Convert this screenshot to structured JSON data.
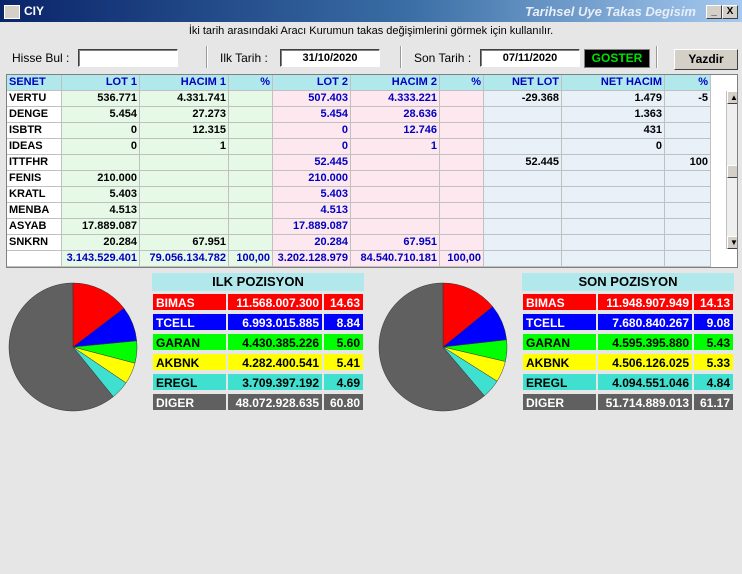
{
  "window": {
    "title": "CIY",
    "title_right": "Tarihsel Uye Takas Degisim"
  },
  "window_controls": {
    "minimize": "_",
    "close": "X"
  },
  "hint": "İki tarih arasındaki  Aracı Kurumun takas değişimlerini görmek için kullanılır.",
  "filters": {
    "hisse_label": "Hisse Bul :",
    "hisse_value": "",
    "ilk_label": "Ilk Tarih :",
    "ilk_value": "31/10/2020",
    "son_label": "Son Tarih :",
    "son_value": "07/11/2020",
    "goster": "GOSTER",
    "yazdir": "Yazdir"
  },
  "table": {
    "headers": [
      "SENET",
      "LOT 1",
      "HACIM 1",
      "%",
      "LOT 2",
      "HACIM 2",
      "%",
      "NET LOT",
      "NET HACIM",
      "%"
    ],
    "rows": [
      [
        "VERTU",
        "536.771",
        "4.331.741",
        "",
        "507.403",
        "4.333.221",
        "",
        "-29.368",
        "1.479",
        "-5"
      ],
      [
        "DENGE",
        "5.454",
        "27.273",
        "",
        "5.454",
        "28.636",
        "",
        "",
        "1.363",
        ""
      ],
      [
        "ISBTR",
        "0",
        "12.315",
        "",
        "0",
        "12.746",
        "",
        "",
        "431",
        ""
      ],
      [
        "IDEAS",
        "0",
        "1",
        "",
        "0",
        "1",
        "",
        "",
        "0",
        ""
      ],
      [
        "ITTFHR",
        "",
        "",
        "",
        "52.445",
        "",
        "",
        "52.445",
        "",
        "100"
      ],
      [
        "FENIS",
        "210.000",
        "",
        "",
        "210.000",
        "",
        "",
        "",
        "",
        ""
      ],
      [
        "KRATL",
        "5.403",
        "",
        "",
        "5.403",
        "",
        "",
        "",
        "",
        ""
      ],
      [
        "MENBA",
        "4.513",
        "",
        "",
        "4.513",
        "",
        "",
        "",
        "",
        ""
      ],
      [
        "ASYAB",
        "17.889.087",
        "",
        "",
        "17.889.087",
        "",
        "",
        "",
        "",
        ""
      ],
      [
        "SNKRN",
        "20.284",
        "67.951",
        "",
        "20.284",
        "67.951",
        "",
        "",
        "",
        ""
      ]
    ],
    "totals": [
      "",
      "3.143.529.401",
      "79.056.134.782",
      "100,00",
      "3.202.128.979",
      "84.540.710.181",
      "100,00",
      "",
      "",
      ""
    ]
  },
  "ilk_pozisyon": {
    "title": "ILK POZISYON",
    "rows": [
      {
        "name": "BIMAS",
        "value": "11.568.007.300",
        "pct": "14.63",
        "color": "#ff0000",
        "fg": "#ffffff"
      },
      {
        "name": "TCELL",
        "value": "6.993.015.885",
        "pct": "8.84",
        "color": "#0000ff",
        "fg": "#ffffff"
      },
      {
        "name": "GARAN",
        "value": "4.430.385.226",
        "pct": "5.60",
        "color": "#00ff00",
        "fg": "#000000"
      },
      {
        "name": "AKBNK",
        "value": "4.282.400.541",
        "pct": "5.41",
        "color": "#ffff00",
        "fg": "#000000"
      },
      {
        "name": "EREGL",
        "value": "3.709.397.192",
        "pct": "4.69",
        "color": "#40e0d0",
        "fg": "#000000"
      },
      {
        "name": "DIGER",
        "value": "48.072.928.635",
        "pct": "60.80",
        "color": "#606060",
        "fg": "#ffffff"
      }
    ]
  },
  "son_pozisyon": {
    "title": "SON POZISYON",
    "rows": [
      {
        "name": "BIMAS",
        "value": "11.948.907.949",
        "pct": "14.13",
        "color": "#ff0000",
        "fg": "#ffffff"
      },
      {
        "name": "TCELL",
        "value": "7.680.840.267",
        "pct": "9.08",
        "color": "#0000ff",
        "fg": "#ffffff"
      },
      {
        "name": "GARAN",
        "value": "4.595.395.880",
        "pct": "5.43",
        "color": "#00ff00",
        "fg": "#000000"
      },
      {
        "name": "AKBNK",
        "value": "4.506.126.025",
        "pct": "5.33",
        "color": "#ffff00",
        "fg": "#000000"
      },
      {
        "name": "EREGL",
        "value": "4.094.551.046",
        "pct": "4.84",
        "color": "#40e0d0",
        "fg": "#000000"
      },
      {
        "name": "DIGER",
        "value": "51.714.889.013",
        "pct": "61.17",
        "color": "#606060",
        "fg": "#ffffff"
      }
    ]
  }
}
